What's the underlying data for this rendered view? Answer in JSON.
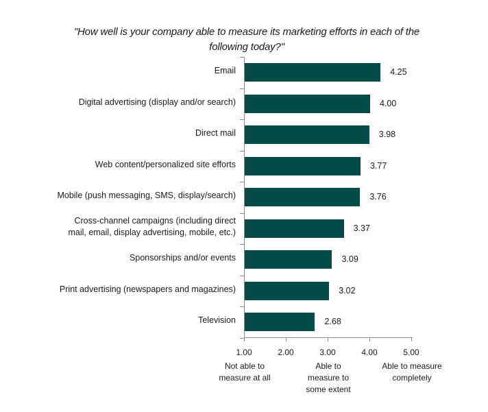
{
  "chart_data": {
    "type": "bar",
    "orientation": "horizontal",
    "title": "\"How well is your company able to measure its marketing efforts in each of the following today?\"",
    "title_lines": [
      "\"How well is your company able to measure its marketing efforts in each of the",
      "following today?\""
    ],
    "categories": [
      "Email",
      "Digital advertising (display and/or search)",
      "Direct mail",
      "Web content/personalized site efforts",
      "Mobile (push messaging, SMS, display/search)",
      "Cross-channel campaigns (including direct mail, email, display advertising, mobile, etc.)",
      "Sponsorships and/or events",
      "Print advertising (newspapers and magazines)",
      "Television"
    ],
    "category_lines": [
      [
        "Email"
      ],
      [
        "Digital advertising (display and/or search)"
      ],
      [
        "Direct mail"
      ],
      [
        "Web content/personalized site efforts"
      ],
      [
        "Mobile (push messaging, SMS, display/search)"
      ],
      [
        "Cross-channel campaigns (including direct",
        "mail, email, display advertising, mobile, etc.)"
      ],
      [
        "Sponsorships and/or events"
      ],
      [
        "Print advertising (newspapers and magazines)"
      ],
      [
        "Television"
      ]
    ],
    "values": [
      4.25,
      4.0,
      3.98,
      3.77,
      3.76,
      3.37,
      3.09,
      3.02,
      2.68
    ],
    "value_labels": [
      "4.25",
      "4.00",
      "3.98",
      "3.77",
      "3.76",
      "3.37",
      "3.09",
      "3.02",
      "2.68"
    ],
    "xlabel": "",
    "ylabel": "",
    "xlim": [
      1.0,
      5.0
    ],
    "x_ticks": [
      1,
      2,
      3,
      4,
      5
    ],
    "x_tick_labels": [
      "1.00",
      "2.00",
      "3.00",
      "4.00",
      "5.00"
    ],
    "scale_anchors": [
      {
        "at": 1.0,
        "lines": [
          "Not able to",
          "measure at all"
        ]
      },
      {
        "at": 3.0,
        "lines": [
          "Able to",
          "measure to",
          "some extent"
        ]
      },
      {
        "at": 5.0,
        "lines": [
          "Able to measure",
          "completely"
        ]
      }
    ],
    "grid": false,
    "legend": "none",
    "bar_color": "#034b46"
  }
}
